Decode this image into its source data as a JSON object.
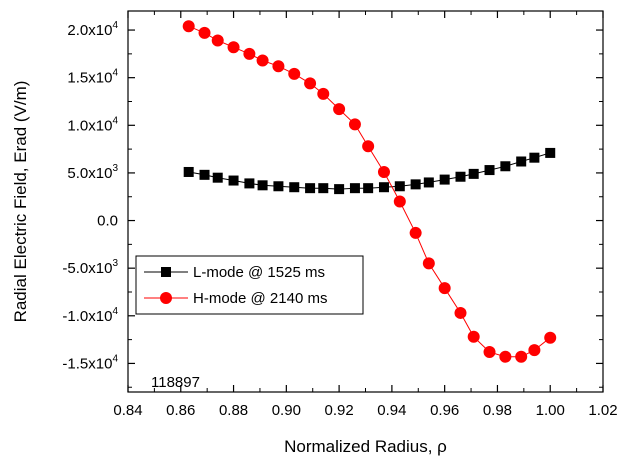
{
  "chart_data": {
    "type": "line",
    "xlabel": "Normalized Radius, ρ",
    "ylabel": "Radial Electric Field, Erad (V/m)",
    "xlim": [
      0.84,
      1.02
    ],
    "ylim": [
      -18000,
      22000
    ],
    "x_ticks": [
      0.84,
      0.86,
      0.88,
      0.9,
      0.92,
      0.94,
      0.96,
      0.98,
      1.0,
      1.02
    ],
    "x_tick_labels": [
      "0.84",
      "0.86",
      "0.88",
      "0.90",
      "0.92",
      "0.94",
      "0.96",
      "0.98",
      "1.00",
      "1.02"
    ],
    "y_ticks": [
      {
        "value": 20000,
        "mantissa": "2.0x10",
        "exp": "4"
      },
      {
        "value": 15000,
        "mantissa": "1.5x10",
        "exp": "4"
      },
      {
        "value": 10000,
        "mantissa": "1.0x10",
        "exp": "4"
      },
      {
        "value": 5000,
        "mantissa": "5.0x10",
        "exp": "3"
      },
      {
        "value": 0,
        "mantissa": "0.0",
        "exp": ""
      },
      {
        "value": -5000,
        "mantissa": "-5.0x10",
        "exp": "3"
      },
      {
        "value": -10000,
        "mantissa": "-1.0x10",
        "exp": "4"
      },
      {
        "value": -15000,
        "mantissa": "-1.5x10",
        "exp": "4"
      }
    ],
    "grid": false,
    "legend_position": "lower-left",
    "annotation": "118897",
    "series": [
      {
        "name": "L-mode @ 1525 ms",
        "marker": "square",
        "color": "#000000",
        "x": [
          0.863,
          0.869,
          0.874,
          0.88,
          0.886,
          0.891,
          0.897,
          0.903,
          0.909,
          0.914,
          0.92,
          0.926,
          0.931,
          0.937,
          0.943,
          0.949,
          0.954,
          0.96,
          0.966,
          0.971,
          0.977,
          0.983,
          0.989,
          0.994,
          1.0
        ],
        "y": [
          5100,
          4800,
          4500,
          4200,
          3900,
          3700,
          3600,
          3500,
          3400,
          3400,
          3300,
          3400,
          3400,
          3500,
          3600,
          3800,
          4000,
          4300,
          4600,
          4900,
          5300,
          5700,
          6200,
          6600,
          7100
        ]
      },
      {
        "name": "H-mode @ 2140 ms",
        "marker": "circle",
        "color": "#ff0000",
        "x": [
          0.863,
          0.869,
          0.874,
          0.88,
          0.886,
          0.891,
          0.897,
          0.903,
          0.909,
          0.914,
          0.92,
          0.926,
          0.931,
          0.937,
          0.943,
          0.949,
          0.954,
          0.96,
          0.966,
          0.971,
          0.977,
          0.983,
          0.989,
          0.994,
          1.0
        ],
        "y": [
          20400,
          19700,
          18900,
          18200,
          17500,
          16800,
          16200,
          15400,
          14400,
          13300,
          11700,
          10100,
          7800,
          5100,
          2000,
          -1300,
          -4500,
          -7100,
          -9700,
          -12200,
          -13800,
          -14300,
          -14300,
          -13600,
          -12300
        ]
      }
    ]
  }
}
